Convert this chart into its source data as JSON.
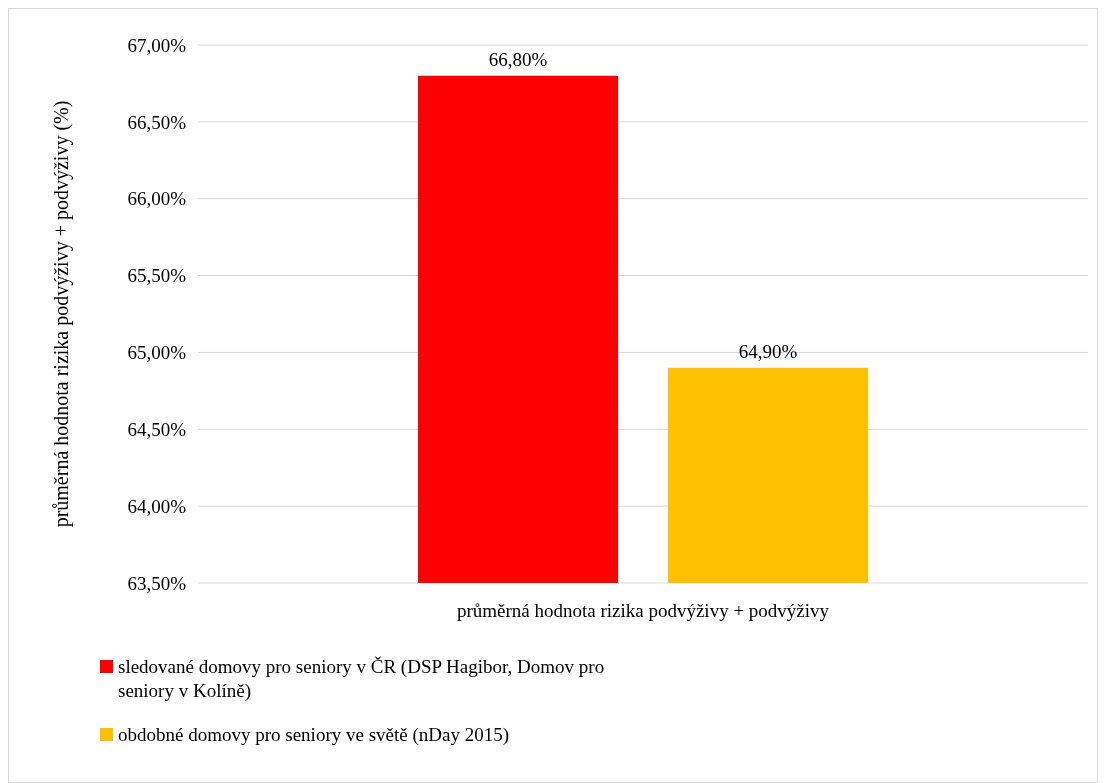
{
  "chart_data": {
    "type": "bar",
    "ylabel": "průměrná hodnota rizika podvýživy + podvýživy  (%)",
    "categories": [
      "průměrná hodnota rizika podvýživy + podvýživy"
    ],
    "series": [
      {
        "name": "sledované domovy pro seniory v ČR (DSP Hagibor, Domov pro seniory v Kolíně)",
        "color": "#ff0000",
        "values": [
          66.8
        ],
        "value_labels": [
          "66,80%"
        ]
      },
      {
        "name": "obdobné domovy pro seniory ve světě (nDay 2015)",
        "color": "#ffc000",
        "values": [
          64.9
        ],
        "value_labels": [
          "64,90%"
        ]
      }
    ],
    "ylim": [
      63.5,
      67
    ],
    "yticks": [
      {
        "value": 63.5,
        "label": "63,50%"
      },
      {
        "value": 64,
        "label": "64,00%"
      },
      {
        "value": 64.5,
        "label": "64,50%"
      },
      {
        "value": 65,
        "label": "65,00%"
      },
      {
        "value": 65.5,
        "label": "65,50%"
      },
      {
        "value": 66,
        "label": "66,00%"
      },
      {
        "value": 66.5,
        "label": "66,50%"
      },
      {
        "value": 67,
        "label": "67,00%"
      }
    ],
    "grid": "y",
    "legend": "bottom"
  }
}
